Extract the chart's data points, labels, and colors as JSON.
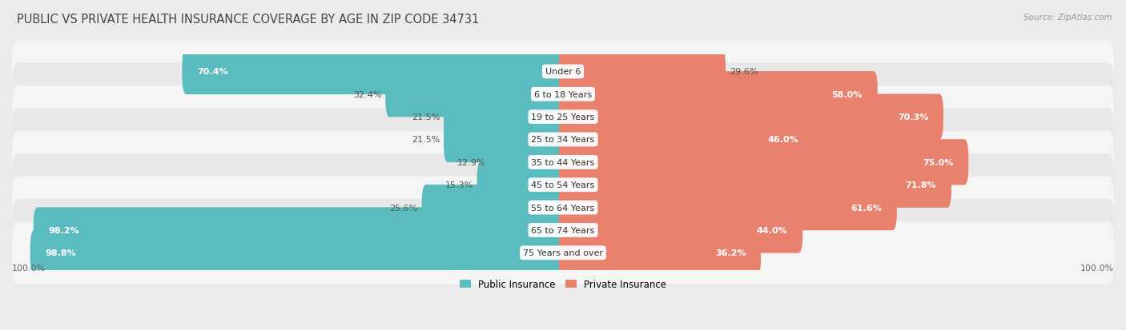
{
  "title": "PUBLIC VS PRIVATE HEALTH INSURANCE COVERAGE BY AGE IN ZIP CODE 34731",
  "source": "Source: ZipAtlas.com",
  "categories": [
    "Under 6",
    "6 to 18 Years",
    "19 to 25 Years",
    "25 to 34 Years",
    "35 to 44 Years",
    "45 to 54 Years",
    "55 to 64 Years",
    "65 to 74 Years",
    "75 Years and over"
  ],
  "public_values": [
    70.4,
    32.4,
    21.5,
    21.5,
    12.9,
    15.3,
    25.6,
    98.2,
    98.8
  ],
  "private_values": [
    29.6,
    58.0,
    70.3,
    46.0,
    75.0,
    71.8,
    61.6,
    44.0,
    36.2
  ],
  "public_color": "#5bbcbf",
  "private_color": "#e8826e",
  "bg_color": "#ebebeb",
  "row_colors": [
    "#f5f5f5",
    "#e8e8e8"
  ],
  "axis_label_left": "100.0%",
  "axis_label_right": "100.0%",
  "max_value": 100.0,
  "title_fontsize": 10.5,
  "bar_label_fontsize": 8.0,
  "category_fontsize": 8.0,
  "legend_fontsize": 8.5,
  "axis_tick_fontsize": 8.0,
  "inside_label_threshold": 35
}
